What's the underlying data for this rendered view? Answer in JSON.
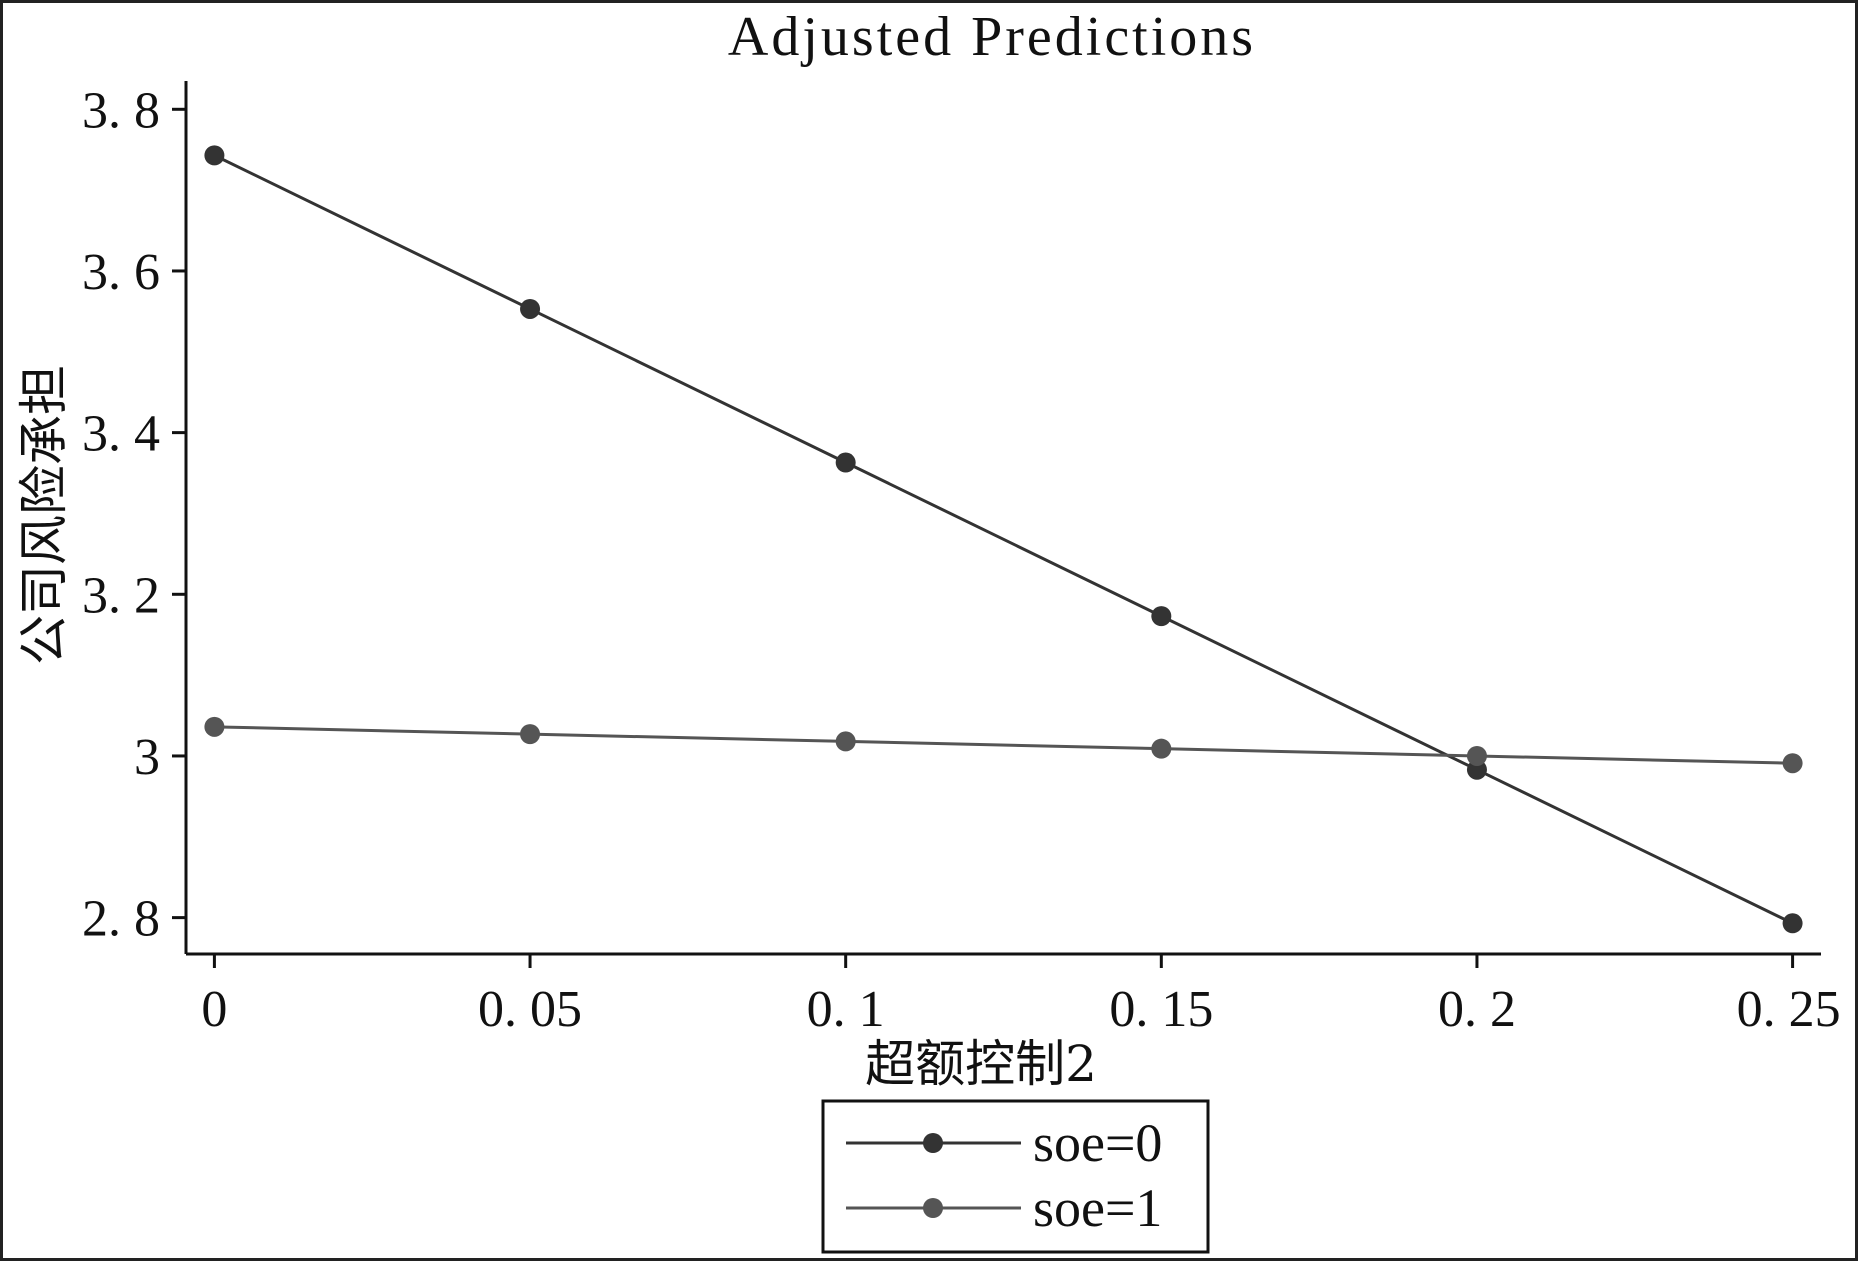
{
  "chart_data": {
    "type": "line",
    "title": "Adjusted Predictions",
    "xlabel": "超额控制2",
    "ylabel": "公司风险承担",
    "x": [
      0,
      0.05,
      0.1,
      0.15,
      0.2,
      0.25
    ],
    "x_tick_labels": [
      "0",
      "0. 05",
      "0. 1",
      "0. 15",
      "0. 2",
      "0. 25"
    ],
    "y_ticks": [
      2.8,
      3,
      3.2,
      3.4,
      3.6,
      3.8
    ],
    "y_tick_labels": [
      "2. 8",
      "3",
      "3. 2",
      "3. 4",
      "3. 6",
      "3. 8"
    ],
    "xlim": [
      -0.0045,
      0.2545
    ],
    "ylim": [
      2.755,
      3.835
    ],
    "grid": false,
    "legend_position": "bottom",
    "series": [
      {
        "name": "soe=0",
        "color": "#333333",
        "values": [
          3.743,
          3.553,
          3.363,
          3.173,
          2.983,
          2.793
        ]
      },
      {
        "name": "soe=1",
        "color": "#555555",
        "values": [
          3.036,
          3.027,
          3.018,
          3.009,
          3.0,
          2.991
        ]
      }
    ]
  }
}
